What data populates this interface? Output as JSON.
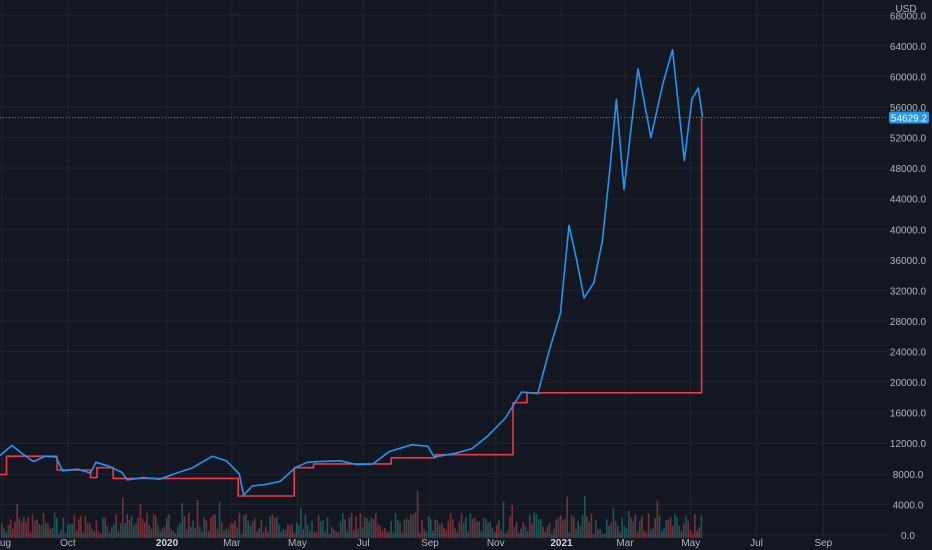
{
  "chart_data": {
    "type": "line",
    "currency": "USD",
    "y_ticks": [
      0,
      4000,
      8000,
      12000,
      16000,
      20000,
      24000,
      28000,
      32000,
      36000,
      40000,
      44000,
      48000,
      52000,
      56000,
      60000,
      64000,
      68000
    ],
    "y_tick_labels": [
      "0.0",
      "4000.0",
      "8000.0",
      "12000.0",
      "16000.0",
      "20000.0",
      "24000.0",
      "28000.0",
      "32000.0",
      "36000.0",
      "40000.0",
      "44000.0",
      "48000.0",
      "52000.0",
      "56000.0",
      "60000.0",
      "64000.0",
      "68000.0"
    ],
    "ylim": [
      -400,
      70000
    ],
    "xlim": [
      "2019-07-30",
      "2021-10-31"
    ],
    "x_ticks": [
      {
        "label": "Aug",
        "date": "2019-08-01"
      },
      {
        "label": "Oct",
        "date": "2019-10-01"
      },
      {
        "label": "2020",
        "date": "2020-01-01"
      },
      {
        "label": "Mar",
        "date": "2020-03-01"
      },
      {
        "label": "May",
        "date": "2020-05-01"
      },
      {
        "label": "Jul",
        "date": "2020-07-01"
      },
      {
        "label": "Sep",
        "date": "2020-09-01"
      },
      {
        "label": "Nov",
        "date": "2020-11-01"
      },
      {
        "label": "2021",
        "date": "2021-01-01"
      },
      {
        "label": "Mar",
        "date": "2021-03-01"
      },
      {
        "label": "May",
        "date": "2021-05-01"
      },
      {
        "label": "Jul",
        "date": "2021-07-01"
      },
      {
        "label": "Sep",
        "date": "2021-09-01"
      }
    ],
    "current_price_label": "54629.2",
    "current_price": 54629.2,
    "grid": true,
    "series": [
      {
        "color": "#2196f3",
        "points": [
          [
            "2019-07-30",
            10400
          ],
          [
            "2019-08-10",
            11700
          ],
          [
            "2019-08-20",
            10600
          ],
          [
            "2019-08-30",
            9600
          ],
          [
            "2019-09-10",
            10300
          ],
          [
            "2019-09-20",
            10200
          ],
          [
            "2019-09-26",
            8400
          ],
          [
            "2019-10-10",
            8600
          ],
          [
            "2019-10-22",
            8100
          ],
          [
            "2019-10-27",
            9500
          ],
          [
            "2019-11-08",
            9000
          ],
          [
            "2019-11-20",
            8200
          ],
          [
            "2019-11-25",
            7200
          ],
          [
            "2019-12-10",
            7500
          ],
          [
            "2019-12-25",
            7300
          ],
          [
            "2020-01-10",
            8100
          ],
          [
            "2020-01-25",
            8800
          ],
          [
            "2020-02-12",
            10300
          ],
          [
            "2020-02-25",
            9700
          ],
          [
            "2020-03-08",
            8000
          ],
          [
            "2020-03-12",
            5200
          ],
          [
            "2020-03-20",
            6400
          ],
          [
            "2020-04-01",
            6600
          ],
          [
            "2020-04-15",
            7000
          ],
          [
            "2020-04-29",
            8800
          ],
          [
            "2020-05-10",
            9500
          ],
          [
            "2020-05-20",
            9600
          ],
          [
            "2020-06-10",
            9700
          ],
          [
            "2020-06-25",
            9200
          ],
          [
            "2020-07-10",
            9300
          ],
          [
            "2020-07-25",
            10900
          ],
          [
            "2020-08-15",
            11800
          ],
          [
            "2020-08-30",
            11600
          ],
          [
            "2020-09-05",
            10200
          ],
          [
            "2020-09-25",
            10700
          ],
          [
            "2020-10-10",
            11300
          ],
          [
            "2020-10-25",
            13000
          ],
          [
            "2020-11-10",
            15300
          ],
          [
            "2020-11-25",
            18700
          ],
          [
            "2020-12-10",
            18500
          ],
          [
            "2020-12-20",
            23800
          ],
          [
            "2020-12-31",
            29000
          ],
          [
            "2021-01-08",
            40500
          ],
          [
            "2021-01-15",
            36000
          ],
          [
            "2021-01-22",
            31000
          ],
          [
            "2021-01-31",
            33000
          ],
          [
            "2021-02-08",
            38500
          ],
          [
            "2021-02-15",
            48000
          ],
          [
            "2021-02-21",
            57000
          ],
          [
            "2021-02-28",
            45200
          ],
          [
            "2021-03-13",
            61000
          ],
          [
            "2021-03-25",
            52000
          ],
          [
            "2021-04-05",
            59000
          ],
          [
            "2021-04-14",
            63500
          ],
          [
            "2021-04-25",
            49000
          ],
          [
            "2021-05-02",
            57000
          ],
          [
            "2021-05-08",
            58500
          ],
          [
            "2021-05-12",
            54629
          ]
        ]
      },
      {
        "color": "#f23645",
        "points": [
          [
            "2019-07-30",
            7900
          ],
          [
            "2019-08-05",
            7900
          ],
          [
            "2019-08-05",
            10300
          ],
          [
            "2019-09-21",
            10300
          ],
          [
            "2019-09-21",
            8500
          ],
          [
            "2019-10-22",
            8500
          ],
          [
            "2019-10-22",
            7500
          ],
          [
            "2019-10-28",
            7500
          ],
          [
            "2019-10-28",
            8800
          ],
          [
            "2019-11-12",
            8800
          ],
          [
            "2019-11-12",
            7400
          ],
          [
            "2020-03-07",
            7400
          ],
          [
            "2020-03-07",
            5100
          ],
          [
            "2020-04-28",
            5100
          ],
          [
            "2020-04-28",
            8800
          ],
          [
            "2020-05-16",
            8800
          ],
          [
            "2020-05-16",
            9300
          ],
          [
            "2020-07-27",
            9300
          ],
          [
            "2020-07-27",
            10100
          ],
          [
            "2020-09-06",
            10100
          ],
          [
            "2020-09-06",
            10500
          ],
          [
            "2020-11-17",
            10500
          ],
          [
            "2020-11-17",
            17300
          ],
          [
            "2020-11-30",
            17300
          ],
          [
            "2020-11-30",
            18600
          ],
          [
            "2021-05-11",
            18600
          ],
          [
            "2021-05-11",
            54629
          ]
        ]
      }
    ]
  }
}
